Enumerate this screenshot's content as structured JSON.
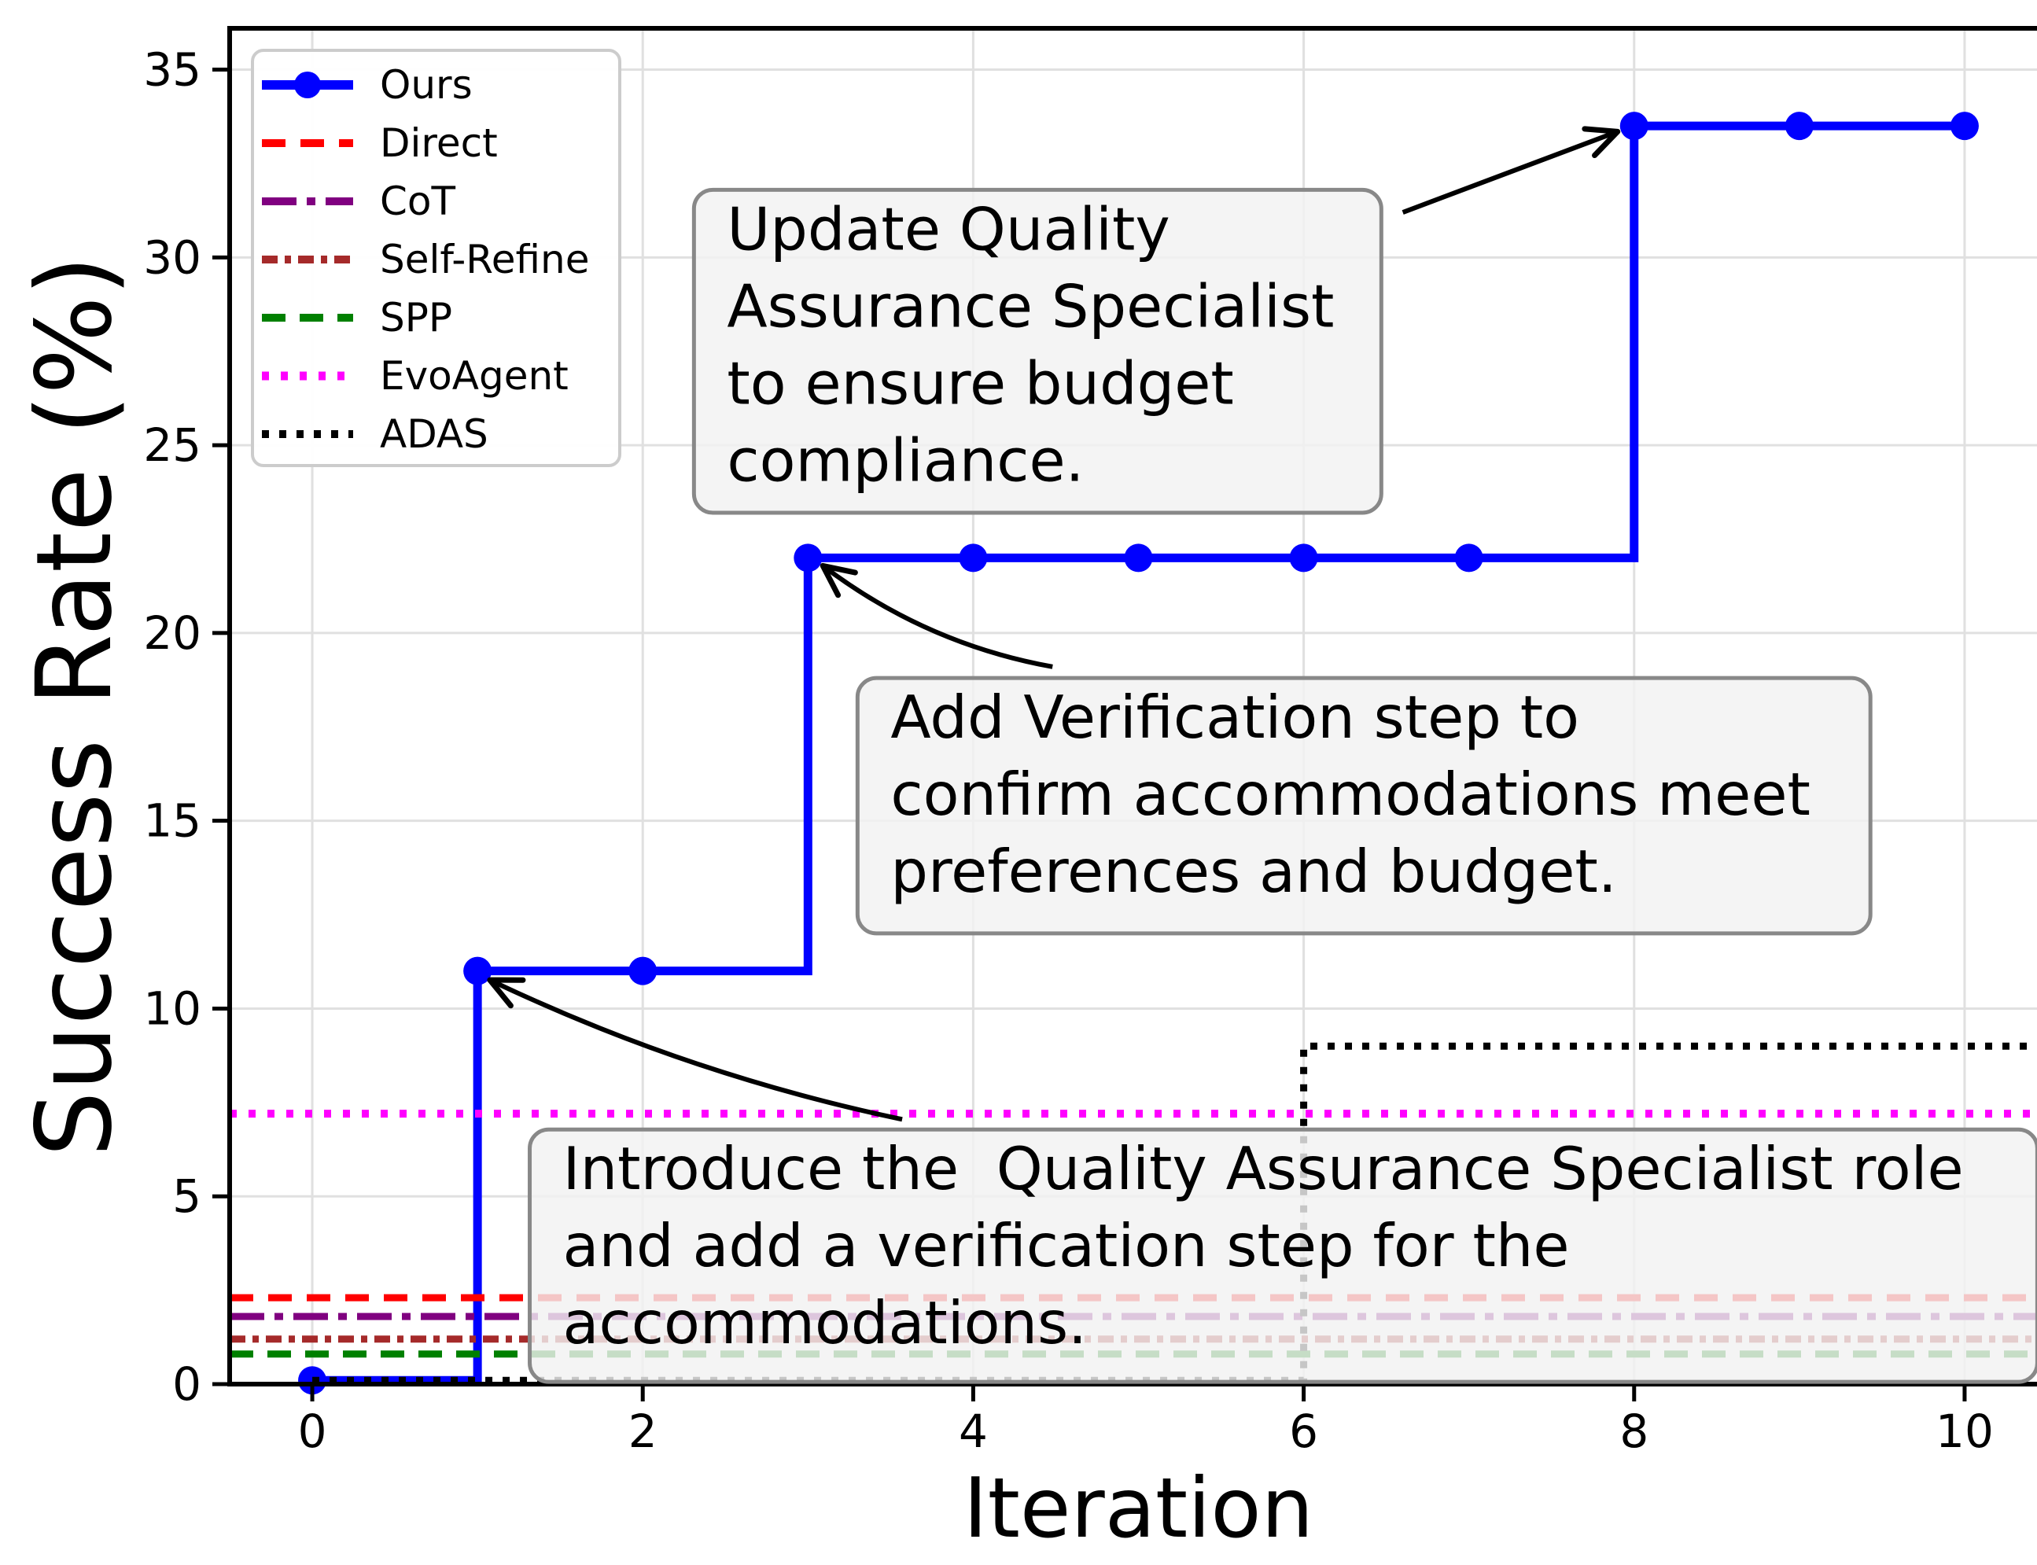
{
  "chart_data": {
    "type": "line",
    "title": "",
    "xlabel": "Iteration",
    "ylabel": "Success Rate (%)",
    "xlim": [
      -0.5,
      10.5
    ],
    "ylim": [
      0,
      36.1
    ],
    "xticks": [
      0,
      2,
      4,
      6,
      8,
      10
    ],
    "yticks": [
      0,
      5,
      10,
      15,
      20,
      25,
      30,
      35
    ],
    "grid": true,
    "legend_position": "upper left",
    "x": [
      0,
      1,
      2,
      3,
      4,
      5,
      6,
      7,
      8,
      9,
      10
    ],
    "series": [
      {
        "name": "Ours",
        "color": "#0000ff",
        "linestyle": "solid",
        "dash": "",
        "linewidth": 11,
        "marker": "circle",
        "marker_size": 18,
        "kind": "step-post",
        "values": [
          0.1,
          11,
          11,
          22,
          22,
          22,
          22,
          22,
          33.5,
          33.5,
          33.5
        ],
        "extend_right": false
      },
      {
        "name": "Direct",
        "color": "#ff0000",
        "linestyle": "dashed",
        "dash": "30 19",
        "linewidth": 9,
        "marker": null,
        "kind": "hline",
        "value": 2.3
      },
      {
        "name": "CoT",
        "color": "#800080",
        "linestyle": "dashdot",
        "dash": "44 13 11 13",
        "linewidth": 9,
        "marker": null,
        "kind": "hline",
        "value": 1.8
      },
      {
        "name": "Self-Refine",
        "color": "#a52a2a",
        "linestyle": "dashdotdot",
        "dash": "20 9 8 9",
        "linewidth": 9,
        "marker": null,
        "kind": "hline",
        "value": 1.2
      },
      {
        "name": "SPP",
        "color": "#008000",
        "linestyle": "dashed",
        "dash": "30 18",
        "linewidth": 9,
        "marker": null,
        "kind": "hline",
        "value": 0.8
      },
      {
        "name": "EvoAgent",
        "color": "#ff00ff",
        "linestyle": "dotted",
        "dash": "9 15",
        "linewidth": 10,
        "marker": null,
        "kind": "hline",
        "value": 7.2
      },
      {
        "name": "ADAS",
        "color": "#000000",
        "linestyle": "dotted",
        "dash": "9 13",
        "linewidth": 9,
        "marker": null,
        "kind": "step-post",
        "values": [
          0.1,
          0.1,
          0.1,
          0.1,
          0.1,
          0.1,
          9,
          9,
          9,
          9,
          9
        ],
        "extend_right": true
      }
    ],
    "annotations": [
      {
        "id": "update-qa",
        "lines": [
          "Update Quality",
          "Assurance Specialist",
          "to ensure budget",
          "compliance."
        ],
        "box": {
          "x0": 2.31,
          "x1": 6.47,
          "y_top": 31.8,
          "y_bottom": 23.2
        },
        "arrow": {
          "from": [
            6.6,
            31.2
          ],
          "to": [
            7.9,
            33.35
          ],
          "curvature": 0.0
        }
      },
      {
        "id": "add-verification",
        "lines": [
          "Add Verification step to",
          "confirm accommodations meet",
          "preferences and budget."
        ],
        "box": {
          "x0": 3.3,
          "x1": 9.43,
          "y_top": 18.8,
          "y_bottom": 12.0
        },
        "arrow": {
          "from": [
            4.48,
            19.1
          ],
          "to": [
            3.09,
            21.79
          ],
          "curvature": 0.12
        }
      },
      {
        "id": "introduce-qa",
        "lines": [
          "Introduce the  Quality Assurance Specialist role",
          "and add a verification step for the",
          "accommodations."
        ],
        "box": {
          "x0": 1.316,
          "x1": 10.44,
          "y_top": 6.78,
          "y_bottom": 0.06
        },
        "arrow": {
          "from": [
            3.57,
            7.05
          ],
          "to": [
            1.075,
            10.76
          ],
          "curvature": 0.06
        }
      }
    ],
    "styles": {
      "annotation_box_face": "#f2f2f2",
      "annotation_box_alpha": 0.82,
      "annotation_box_edge": "#888888",
      "legend_face": "#ffffff",
      "legend_edge": "#cccccc",
      "grid_color": "#e0e0e0",
      "spine_color": "#000000",
      "arrow_color": "#000000",
      "text_color": "#000000"
    }
  }
}
